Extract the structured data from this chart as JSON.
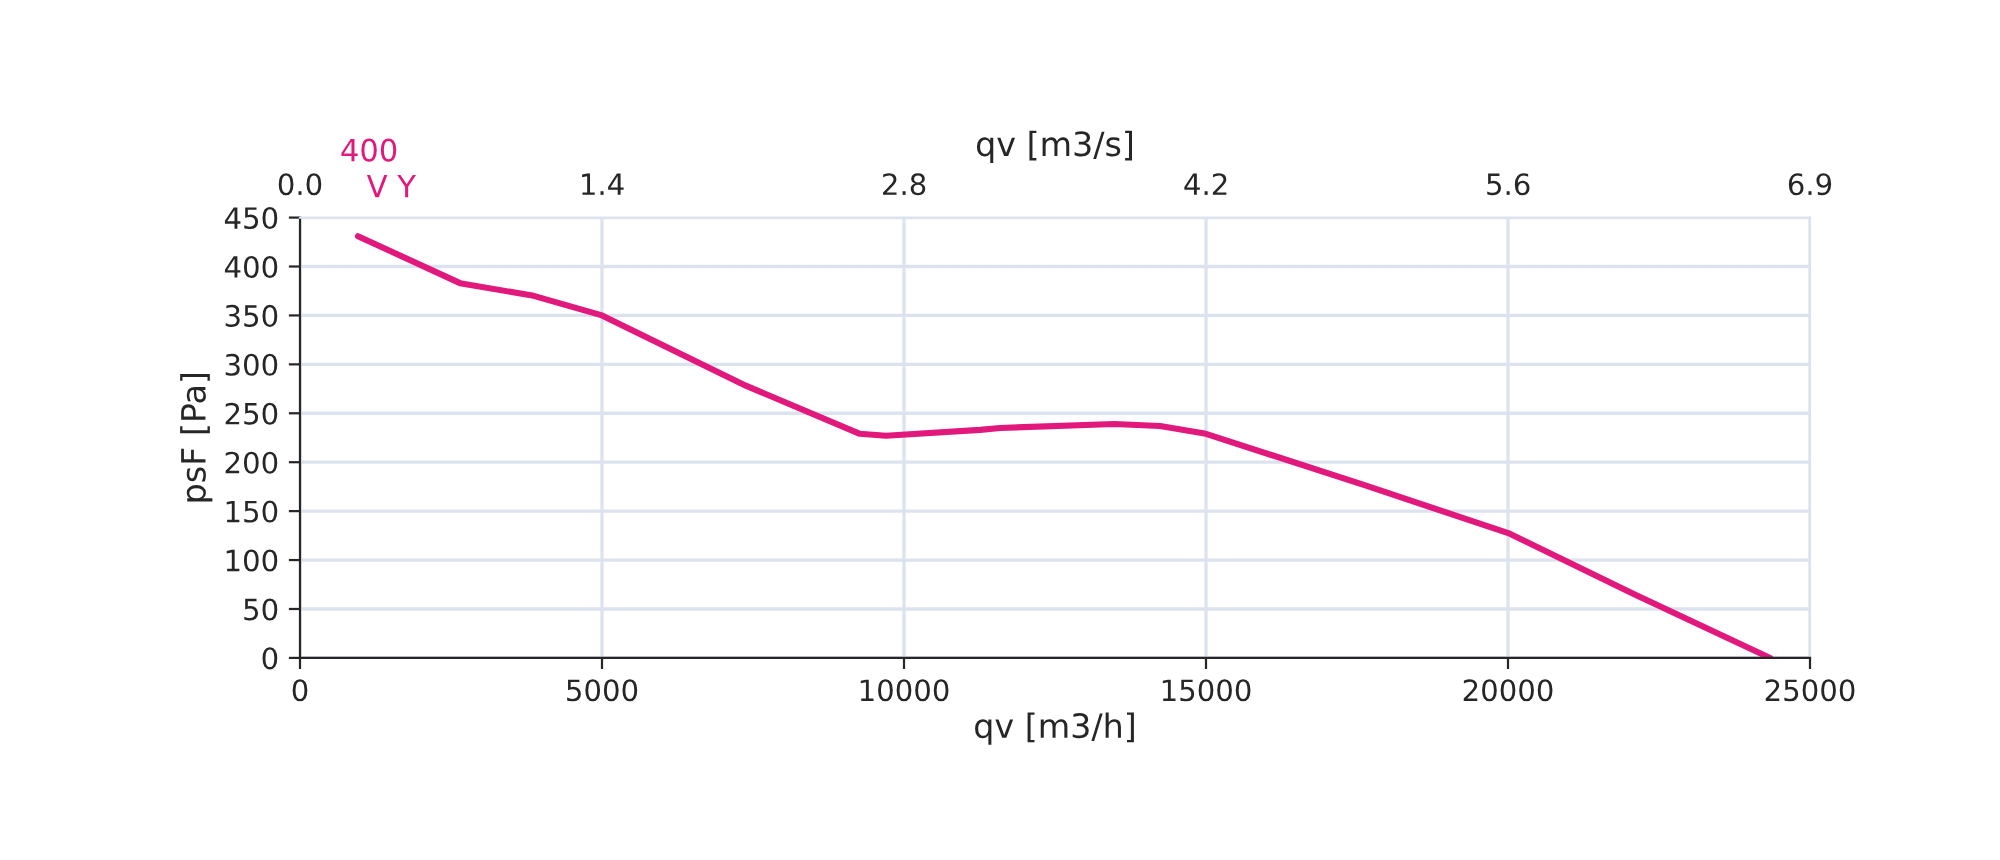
{
  "chart_data": {
    "type": "line",
    "xlabel": "qv [m3/h]",
    "ylabel": "psF [Pa]",
    "x2label": "qv [m3/s]",
    "xlim": [
      0,
      25000
    ],
    "xticks": [
      0,
      5000,
      10000,
      15000,
      20000,
      25000
    ],
    "ylim": [
      0,
      450
    ],
    "yticks": [
      0,
      50,
      100,
      150,
      200,
      250,
      300,
      350,
      400,
      450
    ],
    "x2lim": [
      0,
      6.944
    ],
    "x2ticks": [
      {
        "value": 0,
        "label": "0.0"
      },
      {
        "value": 1.389,
        "label": "1.4"
      },
      {
        "value": 2.778,
        "label": "2.8"
      },
      {
        "value": 4.167,
        "label": "4.2"
      },
      {
        "value": 5.556,
        "label": "5.6"
      },
      {
        "value": 6.944,
        "label": "6.9"
      }
    ],
    "grid": true,
    "marker": "none",
    "line_style": "solid",
    "annotations": [
      "400",
      "V Y"
    ],
    "series": [
      {
        "color": "#e2197d",
        "x": [
          960,
          2650,
          3870,
          5000,
          7390,
          9270,
          9700,
          11260,
          11590,
          13480,
          14240,
          15000,
          17650,
          20030,
          22090,
          24340
        ],
        "values": [
          431,
          383,
          370,
          350,
          278,
          229,
          227,
          233,
          235,
          239,
          237,
          229,
          176,
          127,
          65,
          0
        ]
      }
    ]
  }
}
